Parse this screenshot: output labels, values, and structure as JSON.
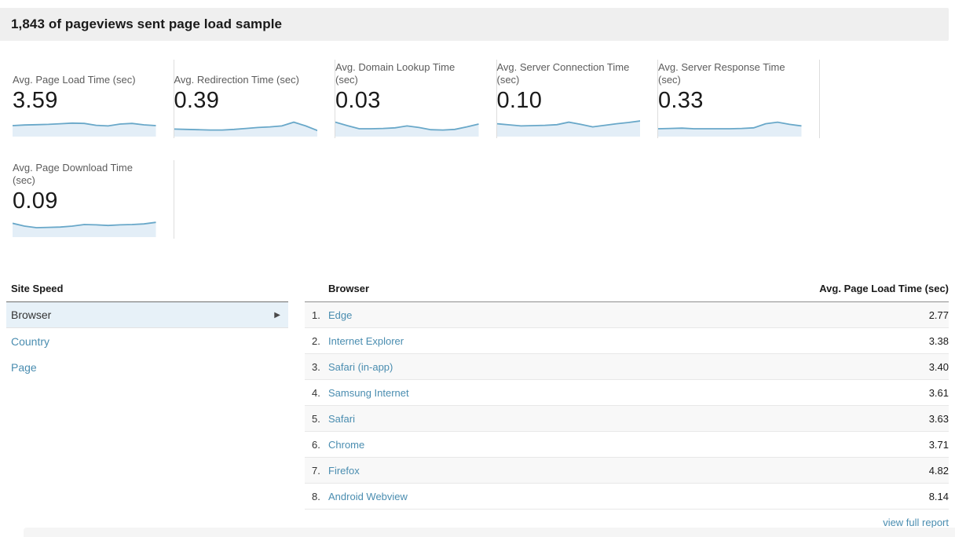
{
  "header": {
    "title": "1,843 of pageviews sent page load sample"
  },
  "colors": {
    "header_bg": "#efefef",
    "spark_line": "#69a8c9",
    "spark_fill": "#e3eef7",
    "link": "#4a8db0",
    "selected_tab_bg": "#e7f1f8",
    "row_alt_bg": "#f8f8f8"
  },
  "cards": [
    {
      "label": "Avg. Page Load Time (sec)",
      "value": "3.59",
      "spark": [
        0.5,
        0.54,
        0.56,
        0.58,
        0.62,
        0.66,
        0.64,
        0.52,
        0.48,
        0.6,
        0.64,
        0.55,
        0.5
      ]
    },
    {
      "label": "Avg. Redirection Time (sec)",
      "value": "0.39",
      "spark": [
        0.28,
        0.26,
        0.24,
        0.22,
        0.22,
        0.26,
        0.32,
        0.38,
        0.42,
        0.48,
        0.72,
        0.48,
        0.18
      ]
    },
    {
      "label": "Avg. Domain Lookup Time (sec)",
      "value": "0.03",
      "spark": [
        0.72,
        0.5,
        0.3,
        0.3,
        0.32,
        0.36,
        0.48,
        0.38,
        0.24,
        0.22,
        0.26,
        0.42,
        0.6
      ]
    },
    {
      "label": "Avg. Server Connection Time (sec)",
      "value": "0.10",
      "spark": [
        0.62,
        0.55,
        0.48,
        0.5,
        0.52,
        0.56,
        0.72,
        0.58,
        0.42,
        0.52,
        0.62,
        0.7,
        0.8
      ]
    },
    {
      "label": "Avg. Server Response Time (sec)",
      "value": "0.33",
      "spark": [
        0.3,
        0.32,
        0.34,
        0.3,
        0.3,
        0.3,
        0.3,
        0.32,
        0.36,
        0.62,
        0.72,
        0.58,
        0.48
      ]
    },
    {
      "label": "Avg. Page Download Time (sec)",
      "value": "0.09",
      "spark": [
        0.68,
        0.5,
        0.4,
        0.42,
        0.44,
        0.5,
        0.6,
        0.58,
        0.54,
        0.58,
        0.6,
        0.64,
        0.74
      ]
    }
  ],
  "site_speed": {
    "title": "Site Speed",
    "tabs": [
      {
        "label": "Browser",
        "selected": true
      },
      {
        "label": "Country",
        "selected": false
      },
      {
        "label": "Page",
        "selected": false
      }
    ]
  },
  "table": {
    "columns": [
      "Browser",
      "Avg. Page Load Time (sec)"
    ],
    "rows": [
      {
        "rank": "1.",
        "browser": "Edge",
        "value": "2.77"
      },
      {
        "rank": "2.",
        "browser": "Internet Explorer",
        "value": "3.38"
      },
      {
        "rank": "3.",
        "browser": "Safari (in-app)",
        "value": "3.40"
      },
      {
        "rank": "4.",
        "browser": "Samsung Internet",
        "value": "3.61"
      },
      {
        "rank": "5.",
        "browser": "Safari",
        "value": "3.63"
      },
      {
        "rank": "6.",
        "browser": "Chrome",
        "value": "3.71"
      },
      {
        "rank": "7.",
        "browser": "Firefox",
        "value": "4.82"
      },
      {
        "rank": "8.",
        "browser": "Android Webview",
        "value": "8.14"
      }
    ],
    "footer_link": "view full report"
  },
  "chart_data": [
    {
      "type": "line",
      "title": "Avg. Page Load Time (sec) sparkline",
      "values": [
        0.5,
        0.54,
        0.56,
        0.58,
        0.62,
        0.66,
        0.64,
        0.52,
        0.48,
        0.6,
        0.64,
        0.55,
        0.5
      ],
      "current": 3.59
    },
    {
      "type": "line",
      "title": "Avg. Redirection Time (sec) sparkline",
      "values": [
        0.28,
        0.26,
        0.24,
        0.22,
        0.22,
        0.26,
        0.32,
        0.38,
        0.42,
        0.48,
        0.72,
        0.48,
        0.18
      ],
      "current": 0.39
    },
    {
      "type": "line",
      "title": "Avg. Domain Lookup Time (sec) sparkline",
      "values": [
        0.72,
        0.5,
        0.3,
        0.3,
        0.32,
        0.36,
        0.48,
        0.38,
        0.24,
        0.22,
        0.26,
        0.42,
        0.6
      ],
      "current": 0.03
    },
    {
      "type": "line",
      "title": "Avg. Server Connection Time (sec) sparkline",
      "values": [
        0.62,
        0.55,
        0.48,
        0.5,
        0.52,
        0.56,
        0.72,
        0.58,
        0.42,
        0.52,
        0.62,
        0.7,
        0.8
      ],
      "current": 0.1
    },
    {
      "type": "line",
      "title": "Avg. Server Response Time (sec) sparkline",
      "values": [
        0.3,
        0.32,
        0.34,
        0.3,
        0.3,
        0.3,
        0.3,
        0.32,
        0.36,
        0.62,
        0.72,
        0.58,
        0.48
      ],
      "current": 0.33
    },
    {
      "type": "line",
      "title": "Avg. Page Download Time (sec) sparkline",
      "values": [
        0.68,
        0.5,
        0.4,
        0.42,
        0.44,
        0.5,
        0.6,
        0.58,
        0.54,
        0.58,
        0.6,
        0.64,
        0.74
      ],
      "current": 0.09
    },
    {
      "type": "bar",
      "title": "Avg. Page Load Time by Browser (sec)",
      "categories": [
        "Edge",
        "Internet Explorer",
        "Safari (in-app)",
        "Samsung Internet",
        "Safari",
        "Chrome",
        "Firefox",
        "Android Webview"
      ],
      "values": [
        2.77,
        3.38,
        3.4,
        3.61,
        3.63,
        3.71,
        4.82,
        8.14
      ]
    }
  ]
}
